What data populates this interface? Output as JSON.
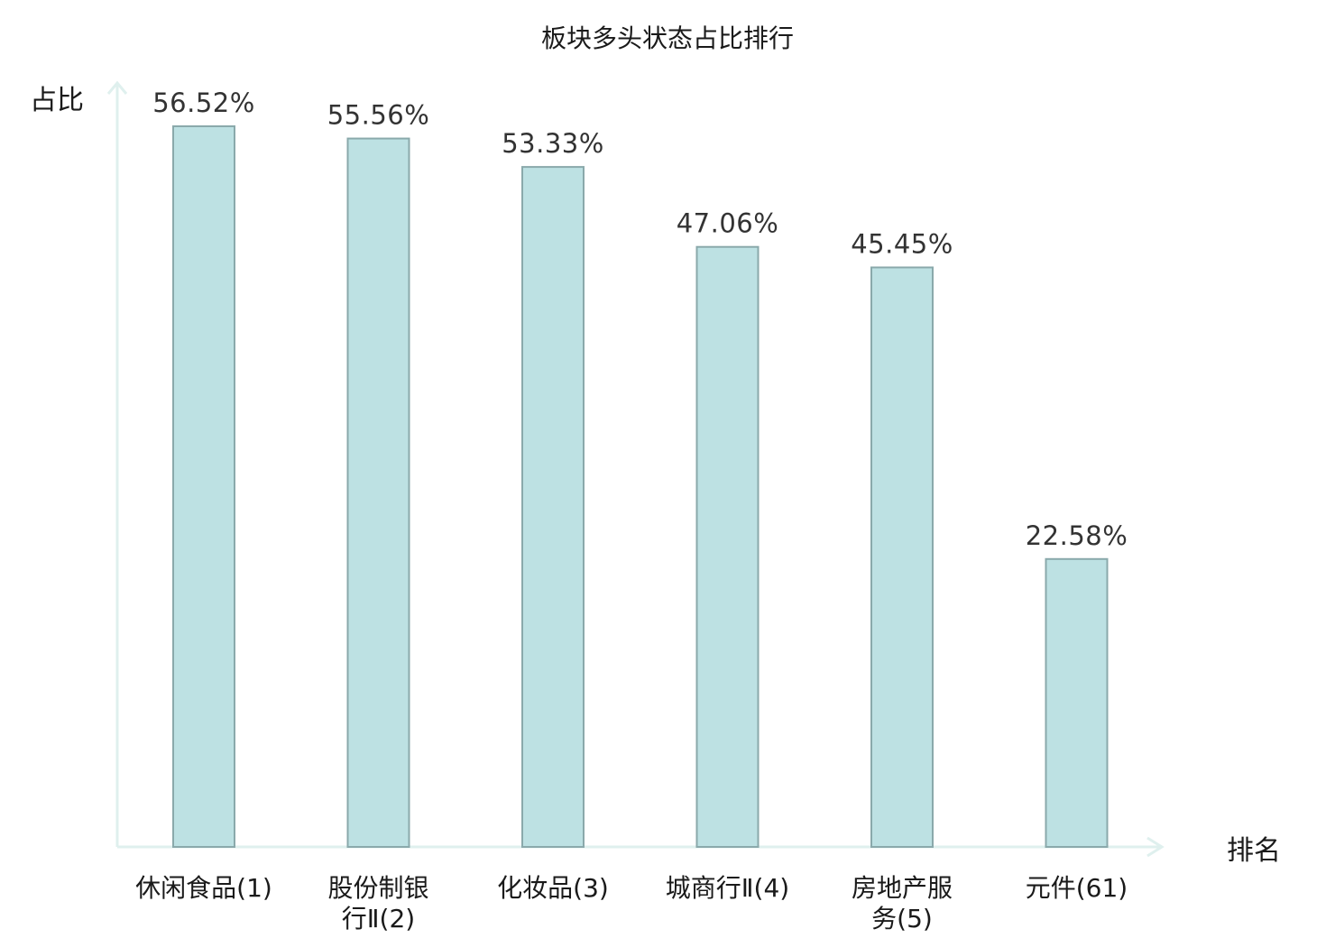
{
  "chart_data": {
    "type": "bar",
    "title": "板块多头状态占比排行",
    "ylabel": "占比",
    "xlabel": "排名",
    "categories": [
      [
        "休闲食品(1)"
      ],
      [
        "股份制银",
        "行Ⅱ(2)"
      ],
      [
        "化妆品(3)"
      ],
      [
        "城商行Ⅱ(4)"
      ],
      [
        "房地产服",
        "务(5)"
      ],
      [
        "元件(61)"
      ]
    ],
    "values": [
      56.52,
      55.56,
      53.33,
      47.06,
      45.45,
      22.58
    ],
    "value_labels": [
      "56.52%",
      "55.56%",
      "53.33%",
      "47.06%",
      "45.45%",
      "22.58%"
    ],
    "highlight_index": 5,
    "ylim": [
      0,
      56.52
    ],
    "grid": false,
    "legend": "none"
  },
  "colors": {
    "bar_fill": "#bde1e3",
    "bar_stroke": "#8aa9ab",
    "axis": "#dff0ee",
    "text": "#1a1a1a",
    "highlight_text": "#e02020"
  }
}
